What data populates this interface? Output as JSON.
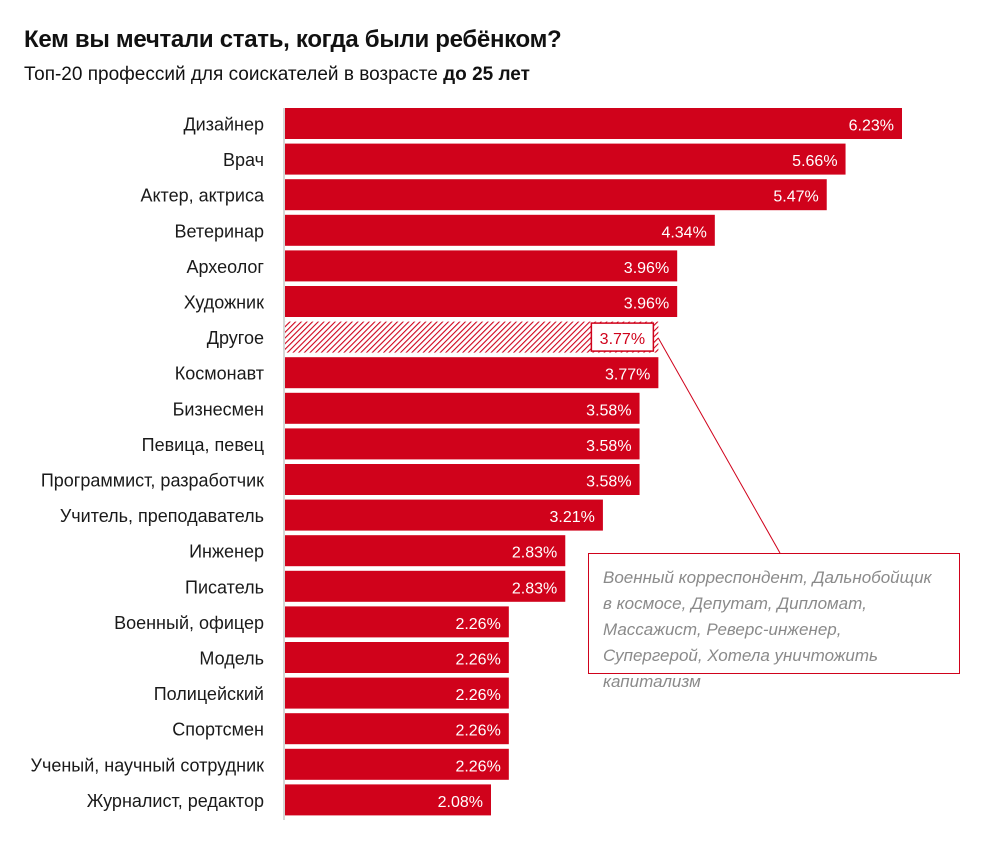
{
  "header": {
    "title": "Кем вы мечтали стать, когда были ребёнком?",
    "subtitle_prefix": "Топ-20 профессий для соискателей в возрасте ",
    "subtitle_bold": "до 25 лет"
  },
  "callout": {
    "text": "Военный корреспондент, Дальнобойщик в космосе, Депутат, Дипломат, Массажист, Реверс-инженер, Супергерой, Хотела уничтожить капитализм"
  },
  "colors": {
    "bar": "#d0021b",
    "axis": "#c8c8c8",
    "callout_border": "#d0021b",
    "callout_text": "#8a8a8a"
  },
  "chart_data": {
    "type": "bar",
    "orientation": "horizontal",
    "unit": "%",
    "categories": [
      "Дизайнер",
      "Врач",
      "Актер, актриса",
      "Ветеринар",
      "Археолог",
      "Художник",
      "Другое",
      "Космонавт",
      "Бизнесмен",
      "Певица, певец",
      "Программист, разработчик",
      "Учитель, преподаватель",
      "Инженер",
      "Писатель",
      "Военный, офицер",
      "Модель",
      "Полицейский",
      "Спортсмен",
      "Ученый, научный сотрудник",
      "Журналист, редактор"
    ],
    "values": [
      6.23,
      5.66,
      5.47,
      4.34,
      3.96,
      3.96,
      3.77,
      3.77,
      3.58,
      3.58,
      3.58,
      3.21,
      2.83,
      2.83,
      2.26,
      2.26,
      2.26,
      2.26,
      2.26,
      2.08
    ],
    "value_labels": [
      "6.23%",
      "5.66%",
      "5.47%",
      "4.34%",
      "3.96%",
      "3.96%",
      "3.77%",
      "3.77%",
      "3.58%",
      "3.58%",
      "3.58%",
      "3.21%",
      "2.83%",
      "2.83%",
      "2.26%",
      "2.26%",
      "2.26%",
      "2.26%",
      "2.26%",
      "2.08%"
    ],
    "highlighted_category": "Другое",
    "highlight_style": "hatched",
    "xlim": [
      0,
      6.23
    ],
    "grid": false,
    "legend": "none"
  }
}
